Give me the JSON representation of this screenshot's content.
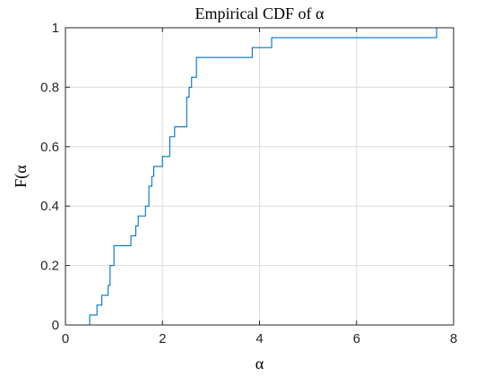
{
  "chart_data": {
    "type": "line",
    "subtype": "stairs",
    "title": "Empirical CDF of α",
    "xlabel": "α",
    "ylabel": "F(α",
    "xlim": [
      0,
      8
    ],
    "ylim": [
      0,
      1
    ],
    "xticks": [
      0,
      2,
      4,
      6,
      8
    ],
    "xtick_labels": [
      "0",
      "2",
      "4",
      "6",
      "8"
    ],
    "yticks": [
      0,
      0.2,
      0.4,
      0.6,
      0.8,
      1
    ],
    "ytick_labels": [
      "0",
      "0.2",
      "0.4",
      "0.6",
      "0.8",
      "1"
    ],
    "grid": true,
    "box": true,
    "series": [
      {
        "color": "#0072bd",
        "steps": [
          {
            "x": 0.5,
            "y": 0.0333
          },
          {
            "x": 0.65,
            "y": 0.0667
          },
          {
            "x": 0.75,
            "y": 0.1
          },
          {
            "x": 0.88,
            "y": 0.1333
          },
          {
            "x": 0.92,
            "y": 0.2
          },
          {
            "x": 1.0,
            "y": 0.2667
          },
          {
            "x": 1.35,
            "y": 0.3
          },
          {
            "x": 1.45,
            "y": 0.3333
          },
          {
            "x": 1.5,
            "y": 0.3667
          },
          {
            "x": 1.65,
            "y": 0.4
          },
          {
            "x": 1.72,
            "y": 0.4667
          },
          {
            "x": 1.78,
            "y": 0.5
          },
          {
            "x": 1.82,
            "y": 0.5333
          },
          {
            "x": 2.0,
            "y": 0.5667
          },
          {
            "x": 2.15,
            "y": 0.6333
          },
          {
            "x": 2.25,
            "y": 0.6667
          },
          {
            "x": 2.5,
            "y": 0.7667
          },
          {
            "x": 2.55,
            "y": 0.8
          },
          {
            "x": 2.6,
            "y": 0.8333
          },
          {
            "x": 2.7,
            "y": 0.9
          },
          {
            "x": 3.85,
            "y": 0.9333
          },
          {
            "x": 4.25,
            "y": 0.9667
          },
          {
            "x": 7.65,
            "y": 1.0
          }
        ]
      }
    ]
  }
}
